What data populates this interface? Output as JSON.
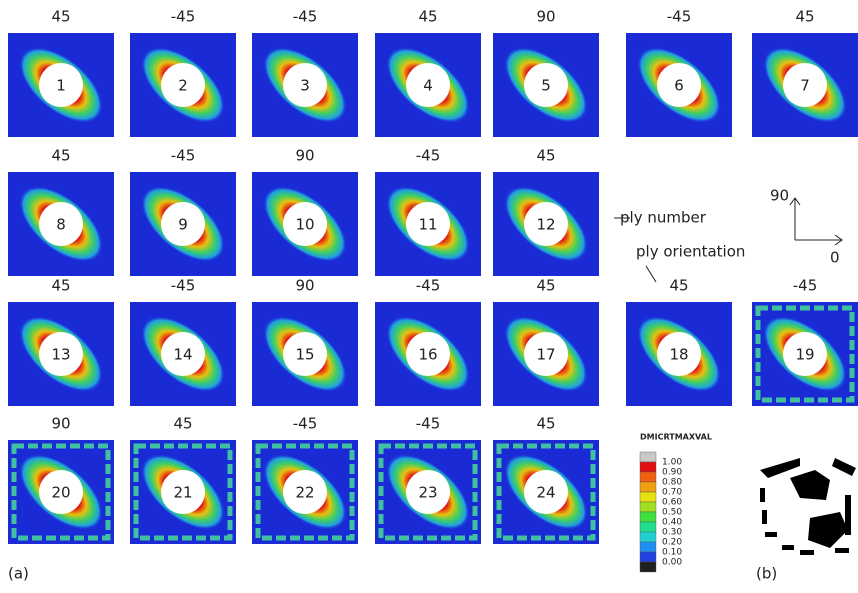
{
  "plies": [
    {
      "orientation": 45,
      "number": 1
    },
    {
      "orientation": -45,
      "number": 2
    },
    {
      "orientation": -45,
      "number": 3
    },
    {
      "orientation": 45,
      "number": 4
    },
    {
      "orientation": 90,
      "number": 5
    },
    {
      "orientation": -45,
      "number": 6
    },
    {
      "orientation": 45,
      "number": 7
    },
    {
      "orientation": 45,
      "number": 8
    },
    {
      "orientation": -45,
      "number": 9
    },
    {
      "orientation": 90,
      "number": 10
    },
    {
      "orientation": -45,
      "number": 11
    },
    {
      "orientation": 45,
      "number": 12
    },
    {
      "orientation": 45,
      "number": 13
    },
    {
      "orientation": -45,
      "number": 14
    },
    {
      "orientation": 90,
      "number": 15
    },
    {
      "orientation": -45,
      "number": 16
    },
    {
      "orientation": 45,
      "number": 17
    },
    {
      "orientation": 45,
      "number": 18
    },
    {
      "orientation": -45,
      "number": 19
    },
    {
      "orientation": 90,
      "number": 20
    },
    {
      "orientation": 45,
      "number": 21
    },
    {
      "orientation": -45,
      "number": 22
    },
    {
      "orientation": -45,
      "number": 23
    },
    {
      "orientation": 45,
      "number": 24
    }
  ],
  "annotations": {
    "ply_number": "ply number",
    "ply_orientation": "ply orientation",
    "axis_90": "90",
    "axis_0": "0",
    "panel_a": "(a)",
    "panel_b": "(b)"
  },
  "legend": {
    "title": "DMICRTMAXVAL",
    "labels": [
      "1.00",
      "0.90",
      "0.80",
      "0.70",
      "0.60",
      "0.50",
      "0.40",
      "0.30",
      "0.20",
      "0.10",
      "0.00"
    ],
    "colors": [
      "#c8c8c8",
      "#e01010",
      "#f06010",
      "#f0a010",
      "#e8e010",
      "#a0e020",
      "#40e040",
      "#20e090",
      "#20d0d0",
      "#2090f0",
      "#2040e0",
      "#202020"
    ]
  }
}
